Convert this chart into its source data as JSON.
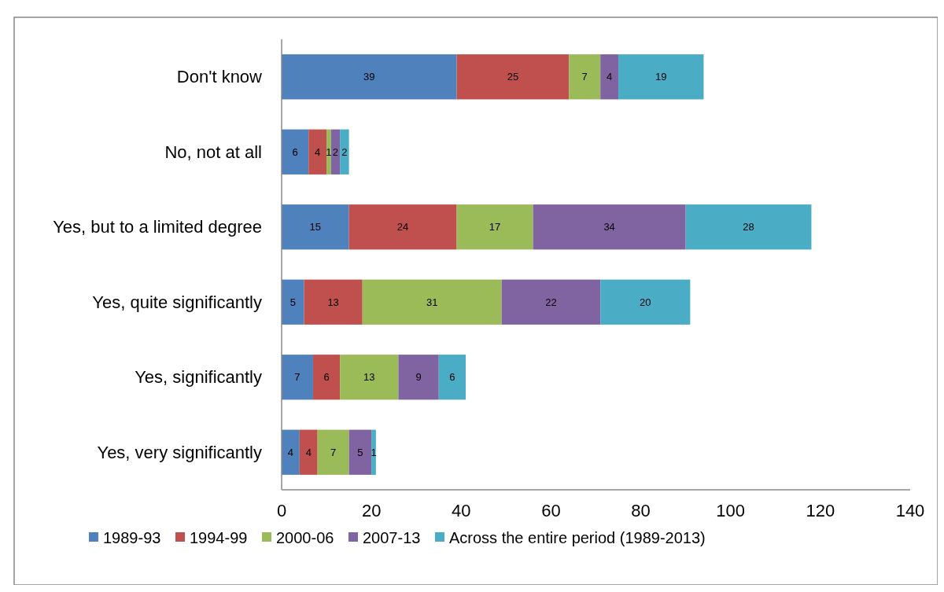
{
  "chart_data": {
    "type": "bar",
    "orientation": "horizontal",
    "stacked": true,
    "data_labels": true,
    "legend": "bottom",
    "grid": false,
    "categories": [
      "Don't know",
      "No, not at all",
      "Yes, but to a limited degree",
      "Yes, quite significantly",
      "Yes, significantly",
      "Yes, very significantly"
    ],
    "xlim": [
      0,
      140
    ],
    "xticks": [
      0,
      20,
      40,
      60,
      80,
      100,
      120,
      140
    ],
    "series": [
      {
        "name": "1989-93",
        "color": "#4f81bd",
        "values": [
          39,
          6,
          15,
          5,
          7,
          4
        ]
      },
      {
        "name": "1994-99",
        "color": "#c0504d",
        "values": [
          25,
          4,
          24,
          13,
          6,
          4
        ]
      },
      {
        "name": "2000-06",
        "color": "#9bbb59",
        "values": [
          7,
          1,
          17,
          31,
          13,
          7
        ]
      },
      {
        "name": "2007-13",
        "color": "#8064a2",
        "values": [
          4,
          2,
          34,
          22,
          9,
          5
        ]
      },
      {
        "name": "Across the entire period (1989-2013)",
        "color": "#4bacc6",
        "values": [
          19,
          2,
          28,
          20,
          6,
          1
        ]
      }
    ]
  }
}
